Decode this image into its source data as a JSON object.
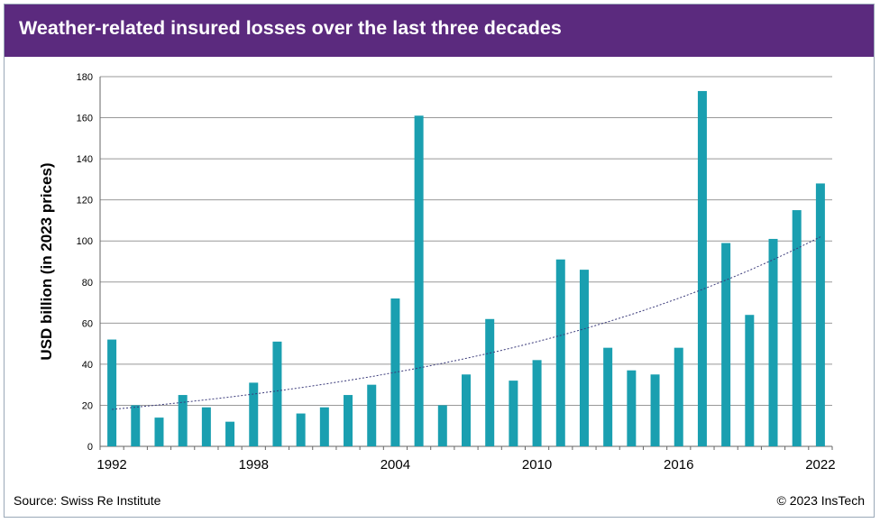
{
  "header": {
    "title": "Weather-related insured losses over the last three decades"
  },
  "footer": {
    "source": "Source: Swiss Re Institute",
    "copyright": "© 2023 InsTech"
  },
  "colors": {
    "header_bg": "#5b2a7e",
    "bar": "#1a9fb0",
    "grid": "#999999",
    "trend": "#3a3a7a"
  },
  "chart_data": {
    "type": "bar",
    "title": "Weather-related insured losses over the last three decades",
    "ylabel": "USD billion (in 2023 prices)",
    "xlabel": "",
    "ylim": [
      0,
      180
    ],
    "yticks": [
      0,
      20,
      40,
      60,
      80,
      100,
      120,
      140,
      160,
      180
    ],
    "xtick_labels": [
      "1992",
      "1998",
      "2004",
      "2010",
      "2016",
      "2022"
    ],
    "categories": [
      "1992",
      "1993",
      "1994",
      "1995",
      "1996",
      "1997",
      "1998",
      "1999",
      "2000",
      "2001",
      "2002",
      "2003",
      "2004",
      "2005",
      "2006",
      "2007",
      "2008",
      "2009",
      "2010",
      "2011",
      "2012",
      "2013",
      "2014",
      "2015",
      "2016",
      "2017",
      "2018",
      "2019",
      "2020",
      "2021",
      "2022"
    ],
    "values": [
      52,
      20,
      14,
      25,
      19,
      12,
      31,
      51,
      16,
      19,
      25,
      30,
      72,
      161,
      20,
      35,
      62,
      32,
      42,
      91,
      86,
      48,
      37,
      35,
      48,
      173,
      99,
      64,
      101,
      115,
      128
    ],
    "trend": {
      "type": "exponential",
      "start_value": 18,
      "end_value": 102
    },
    "grid": true
  }
}
